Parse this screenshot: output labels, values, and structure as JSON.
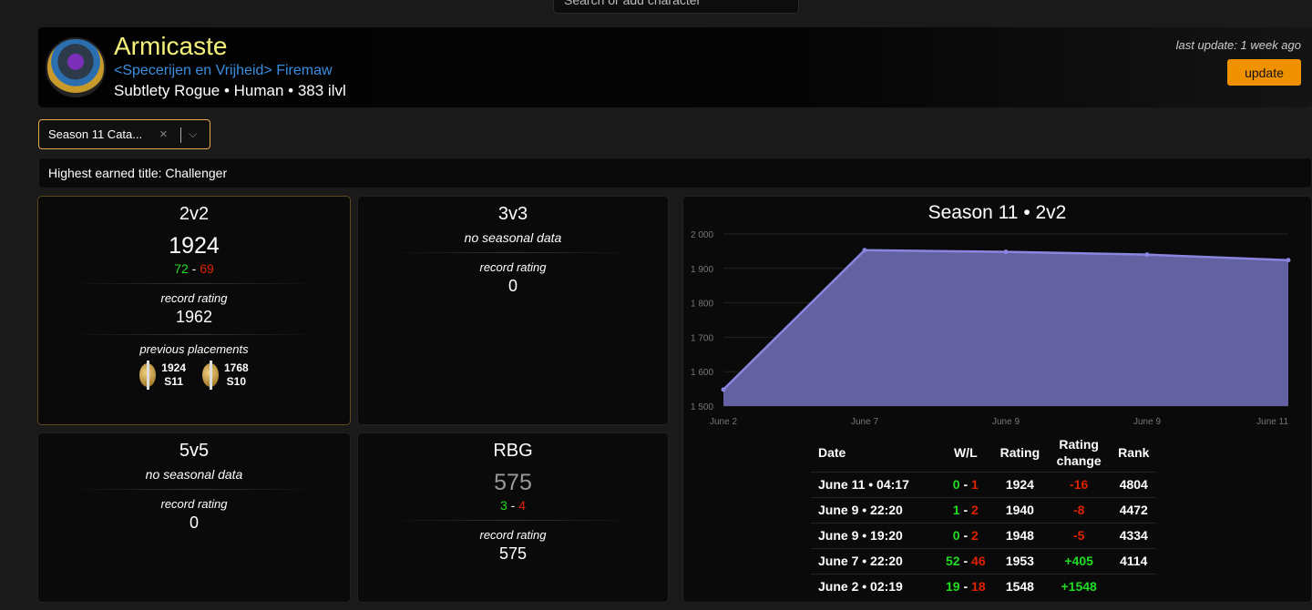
{
  "search": {
    "placeholder": "Search or add character"
  },
  "character": {
    "name": "Armicaste",
    "guild": "<Specerijen en Vrijheid> Firemaw",
    "spec": "Subtlety Rogue • Human • 383 ilvl",
    "last_update": "last update: 1 week ago",
    "update_label": "update"
  },
  "season_select": {
    "value": "Season 11 Cata...",
    "clear": "×",
    "chevron": "⌵"
  },
  "highest_title": "Highest earned title: Challenger",
  "brackets": {
    "b2v2": {
      "name": "2v2",
      "rating": "1924",
      "wins": "72",
      "losses": "69",
      "record_label": "record rating",
      "record": "1962",
      "prev_label": "previous placements",
      "prev": [
        {
          "rating": "1924",
          "season": "S11"
        },
        {
          "rating": "1768",
          "season": "S10"
        }
      ]
    },
    "b3v3": {
      "name": "3v3",
      "nodata": "no seasonal data",
      "record_label": "record rating",
      "record": "0"
    },
    "b5v5": {
      "name": "5v5",
      "nodata": "no seasonal data",
      "record_label": "record rating",
      "record": "0"
    },
    "rbg": {
      "name": "RBG",
      "rating": "575",
      "wins": "3",
      "losses": "4",
      "record_label": "record rating",
      "record": "575"
    }
  },
  "chart_data": {
    "type": "area",
    "title": "Season 11 • 2v2",
    "categories": [
      "June 2",
      "June 7",
      "June 9",
      "June 9",
      "June 11"
    ],
    "values": [
      1548,
      1953,
      1948,
      1940,
      1924
    ],
    "ylim": [
      1500,
      2000
    ],
    "yticks": [
      "2 000",
      "1 900",
      "1 800",
      "1 700",
      "1 600",
      "1 500"
    ],
    "color": "#8a86e0"
  },
  "history": {
    "headers": [
      "Date",
      "W/L",
      "Rating",
      "Rating change",
      "Rank"
    ],
    "rows": [
      {
        "date": "June 11 • 04:17",
        "w": "0",
        "l": "1",
        "rating": "1924",
        "change": "-16",
        "rank": "4804"
      },
      {
        "date": "June 9 • 22:20",
        "w": "1",
        "l": "2",
        "rating": "1940",
        "change": "-8",
        "rank": "4472"
      },
      {
        "date": "June 9 • 19:20",
        "w": "0",
        "l": "2",
        "rating": "1948",
        "change": "-5",
        "rank": "4334"
      },
      {
        "date": "June 7 • 22:20",
        "w": "52",
        "l": "46",
        "rating": "1953",
        "change": "+405",
        "rank": "4114"
      },
      {
        "date": "June 2 • 02:19",
        "w": "19",
        "l": "18",
        "rating": "1548",
        "change": "+1548",
        "rank": ""
      }
    ]
  }
}
